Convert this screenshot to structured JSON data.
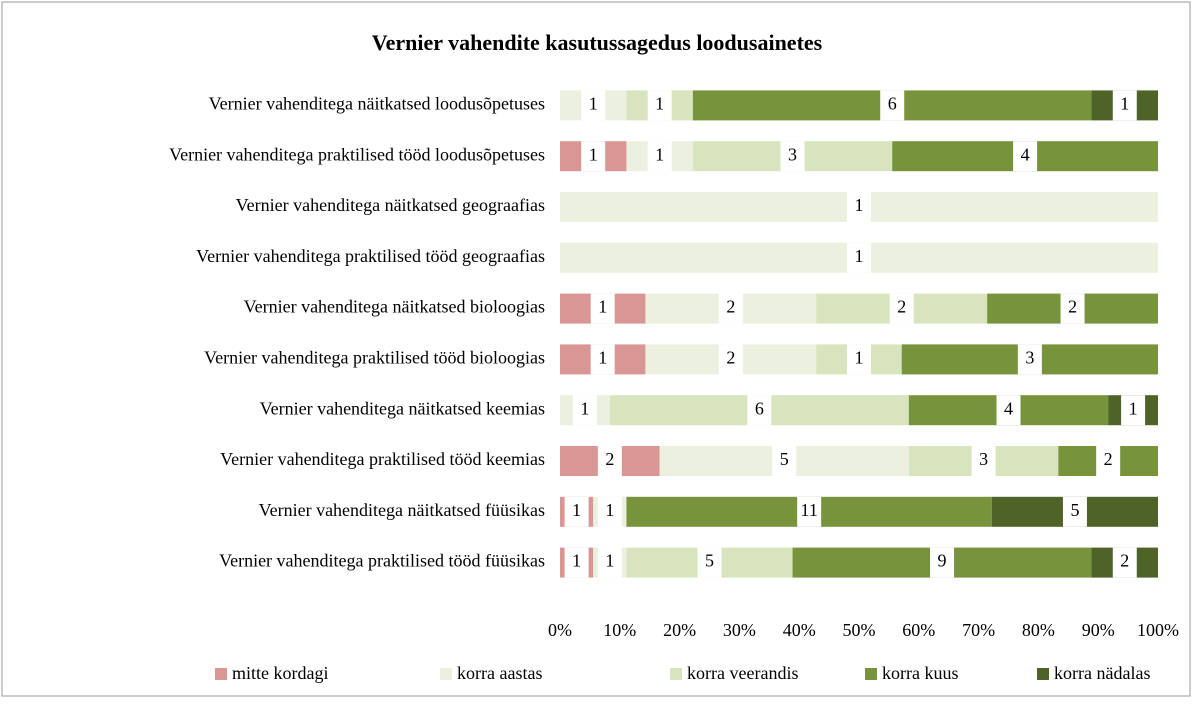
{
  "chart_data": {
    "type": "stacked_bar_100_horizontal",
    "title": "Vernier vahendite kasutussagedus loodusainetes",
    "categories": [
      "Vernier vahenditega näitkatsed loodusõpetuses",
      "Vernier vahenditega praktilised tööd loodusõpetuses",
      "Vernier vahenditega näitkatsed geograafias",
      "Vernier vahenditega praktilised tööd geograafias",
      "Vernier vahenditega näitkatsed bioloogias",
      "Vernier vahenditega praktilised tööd bioloogias",
      "Vernier vahenditega näitkatsed keemias",
      "Vernier vahenditega praktilised tööd keemias",
      "Vernier vahenditega näitkatsed füüsikas",
      "Vernier vahenditega praktilised tööd füüsikas"
    ],
    "series": [
      {
        "name": "mitte kordagi",
        "color": "#d99694",
        "values": [
          null,
          1,
          null,
          null,
          1,
          1,
          null,
          2,
          1,
          1
        ]
      },
      {
        "name": "korra aastas",
        "color": "#ebf1de",
        "values": [
          1,
          1,
          1,
          1,
          2,
          2,
          1,
          5,
          1,
          1
        ]
      },
      {
        "name": "korra veerandis",
        "color": "#d7e4bd",
        "values": [
          1,
          3,
          null,
          null,
          2,
          1,
          6,
          3,
          null,
          5
        ]
      },
      {
        "name": "korra kuus",
        "color": "#77933c",
        "values": [
          6,
          4,
          null,
          null,
          2,
          3,
          4,
          2,
          11,
          9
        ]
      },
      {
        "name": "korra nädalas",
        "color": "#4f6228",
        "values": [
          1,
          null,
          null,
          null,
          null,
          null,
          1,
          null,
          5,
          2
        ]
      }
    ],
    "xlim": [
      0,
      100
    ],
    "xticks": [
      {
        "value": 0,
        "label": "0%"
      },
      {
        "value": 10,
        "label": "10%"
      },
      {
        "value": 20,
        "label": "20%"
      },
      {
        "value": 30,
        "label": "30%"
      },
      {
        "value": 40,
        "label": "40%"
      },
      {
        "value": 50,
        "label": "50%"
      },
      {
        "value": 60,
        "label": "60%"
      },
      {
        "value": 70,
        "label": "70%"
      },
      {
        "value": 80,
        "label": "80%"
      },
      {
        "value": 90,
        "label": "90%"
      },
      {
        "value": 100,
        "label": "100%"
      }
    ],
    "legend": "bottom"
  }
}
